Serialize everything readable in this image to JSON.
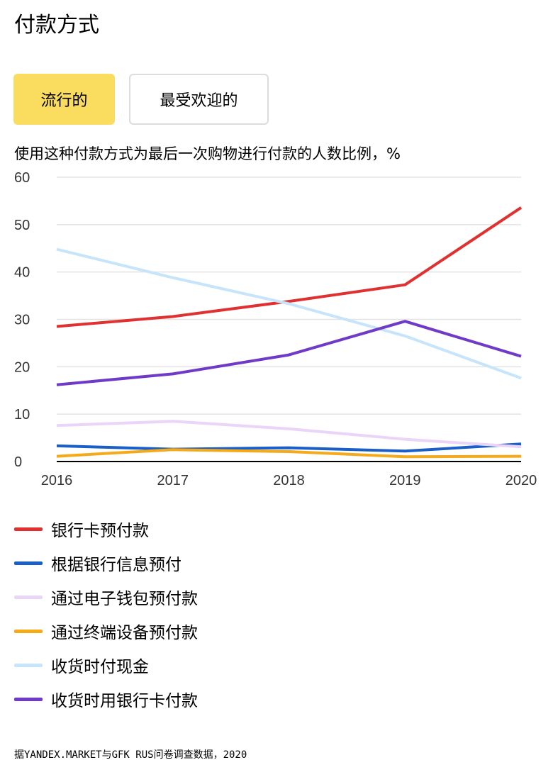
{
  "page": {
    "title": "付款方式"
  },
  "tabs": [
    {
      "label": "流行的",
      "active": true
    },
    {
      "label": "最受欢迎的",
      "active": false
    }
  ],
  "colors": {
    "tab_active": "#fadc5f",
    "tab_border": "#dcdcdc",
    "grid": "#e3e3e3",
    "baseline": "#000000"
  },
  "chart_data": {
    "type": "line",
    "title": "使用这种付款方式为最后一次购物进行付款的人数比例，%",
    "x": [
      "2016",
      "2017",
      "2018",
      "2019",
      "2020"
    ],
    "ylim": [
      0,
      60
    ],
    "yticks": [
      0,
      10,
      20,
      30,
      40,
      50,
      60
    ],
    "grid": true,
    "legend_position": "bottom",
    "series": [
      {
        "name": "银行卡预付款",
        "color": "#e03030",
        "values": [
          28.5,
          30.6,
          33.8,
          37.3,
          53.6
        ]
      },
      {
        "name": "根据银行信息预付",
        "color": "#1a5fc8",
        "values": [
          3.3,
          2.6,
          2.9,
          2.2,
          3.7
        ]
      },
      {
        "name": "通过电子钱包预付款",
        "color": "#ead5f8",
        "values": [
          7.6,
          8.5,
          6.9,
          4.7,
          3.1
        ]
      },
      {
        "name": "通过终端设备预付款",
        "color": "#f5aa1c",
        "values": [
          1.1,
          2.5,
          2.1,
          1.0,
          1.1
        ]
      },
      {
        "name": "收货时付现金",
        "color": "#c6e5fa",
        "values": [
          44.8,
          38.8,
          33.3,
          26.5,
          17.6
        ]
      },
      {
        "name": "收货时用银行卡付款",
        "color": "#6f3ac7",
        "values": [
          16.2,
          18.5,
          22.5,
          29.6,
          22.2
        ]
      }
    ]
  },
  "source": "据YANDEX.MARKET与GFK RUS问卷调查数据，2020"
}
